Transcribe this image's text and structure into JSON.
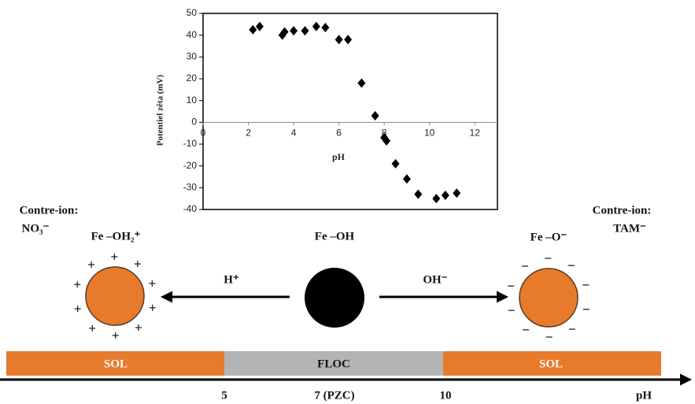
{
  "chart_data": {
    "type": "scatter",
    "x_label": "pH",
    "y_label": "Potentiel zêta (mV)",
    "x": [
      2.2,
      2.5,
      3.5,
      3.6,
      4.0,
      4.5,
      5.0,
      5.4,
      6.0,
      6.4,
      7.0,
      7.6,
      8.0,
      8.1,
      8.5,
      9.0,
      9.5,
      10.3,
      10.7,
      11.2
    ],
    "values": [
      42.5,
      44,
      40,
      41.5,
      42,
      42,
      44,
      43.5,
      38,
      38,
      18,
      3,
      -7,
      -8.5,
      -19,
      -26,
      -33,
      -35,
      -33.5,
      -32.5
    ],
    "color": "#000000",
    "xlim": [
      0,
      13
    ],
    "ylim": [
      -40,
      50
    ],
    "xticks": [
      0,
      2,
      4,
      6,
      8,
      10,
      12
    ],
    "yticks": [
      -40,
      -30,
      -20,
      -10,
      0,
      10,
      20,
      30,
      40,
      50
    ]
  },
  "diagram": {
    "left": {
      "counter_ion": "Contre-ion:",
      "ion": "NO₃⁻",
      "species": "Fe –OH₂⁺",
      "arrow_label": "H⁺"
    },
    "center": {
      "species": "Fe –OH"
    },
    "right": {
      "counter_ion": "Contre-ion:",
      "ion": "TAM⁻",
      "species": "Fe –O⁻",
      "arrow_label": "OH⁻"
    },
    "bands": [
      "SOL",
      "FLOC",
      "SOL"
    ],
    "scale": {
      "ticks": [
        "5",
        "7 (PZC)",
        "10"
      ],
      "label": "pH"
    }
  }
}
